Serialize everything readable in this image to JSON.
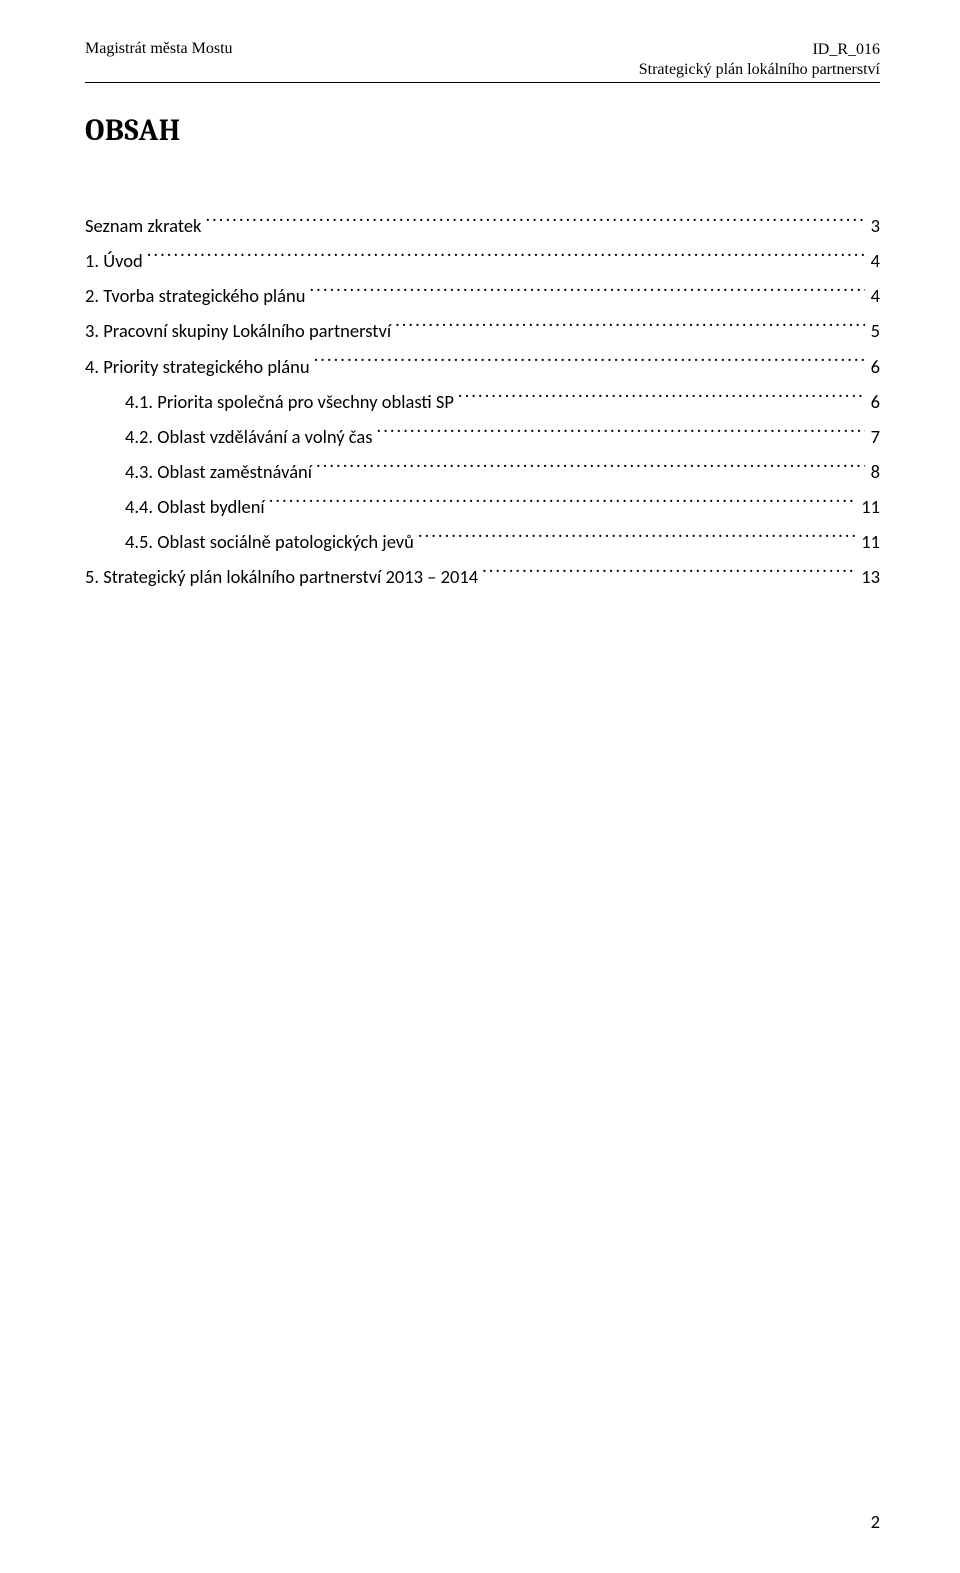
{
  "header": {
    "left": "Magistrát města Mostu",
    "right_line1": "ID_R_016",
    "right_line2": "Strategický plán lokálního partnerství"
  },
  "title": "OBSAH",
  "toc": [
    {
      "level": 0,
      "label": "Seznam zkratek",
      "page": "3"
    },
    {
      "level": 0,
      "label": "1.    Úvod",
      "page": "4"
    },
    {
      "level": 0,
      "label": "2.    Tvorba strategického plánu",
      "page": "4"
    },
    {
      "level": 0,
      "label": "3.    Pracovní skupiny Lokálního partnerství",
      "page": "5"
    },
    {
      "level": 0,
      "label": "4.    Priority strategického plánu",
      "page": "6"
    },
    {
      "level": 1,
      "label": "4.1.    Priorita společná pro všechny oblasti SP",
      "page": "6"
    },
    {
      "level": 1,
      "label": "4.2.    Oblast vzdělávání a volný čas",
      "page": "7"
    },
    {
      "level": 1,
      "label": "4.3.    Oblast zaměstnávání",
      "page": "8"
    },
    {
      "level": 1,
      "label": "4.4.    Oblast bydlení",
      "page": "11"
    },
    {
      "level": 1,
      "label": "4.5.    Oblast sociálně patologických jevů",
      "page": "11"
    },
    {
      "level": 0,
      "label": "5.    Strategický plán lokálního partnerství 2013 – 2014",
      "page": "13"
    }
  ],
  "page_number": "2",
  "colors": {
    "text": "#000000",
    "background": "#ffffff",
    "rule": "#000000"
  },
  "fonts": {
    "header_family": "Times New Roman",
    "body_family": "Calibri",
    "title_family": "Cambria",
    "header_size_pt": 10,
    "body_size_pt": 11,
    "title_size_pt": 16
  }
}
